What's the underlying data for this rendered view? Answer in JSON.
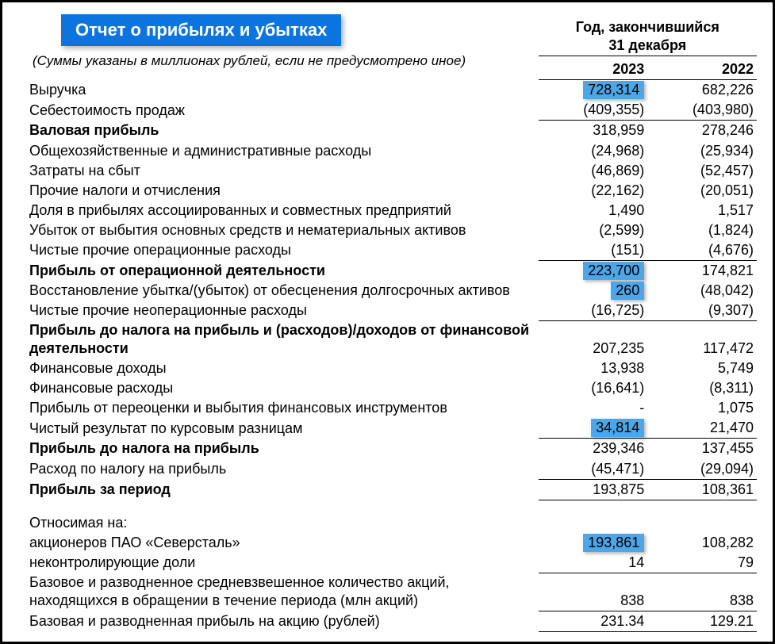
{
  "title_banner": "Отчет о прибылях и убытках",
  "subtitle": "(Суммы указаны в миллионах рублей, если не предусмотрено иное)",
  "header": {
    "group_line1": "Год, закончившийся",
    "group_line2": "31 декабря",
    "year1": "2023",
    "year2": "2022"
  },
  "colors": {
    "banner_bg": "#0b74de",
    "highlight_bg": "#4ca6e8",
    "text": "#000000",
    "bg": "#ffffff"
  },
  "rows": [
    {
      "label": "Выручка",
      "v1": "728,314",
      "v2": "682,226",
      "hl1": true
    },
    {
      "label": "Себестоимость продаж",
      "v1": "(409,355)",
      "v2": "(403,980)",
      "bb": true
    },
    {
      "label": "Валовая прибыль",
      "v1": "318,959",
      "v2": "278,246",
      "bold": true
    },
    {
      "label": "Общехозяйственные и административные расходы",
      "v1": "(24,968)",
      "v2": "(25,934)"
    },
    {
      "label": "Затраты на сбыт",
      "v1": "(46,869)",
      "v2": "(52,457)"
    },
    {
      "label": "Прочие налоги и отчисления",
      "v1": "(22,162)",
      "v2": "(20,051)"
    },
    {
      "label": "Доля в прибылях ассоциированных и совместных предприятий",
      "v1": "1,490",
      "v2": "1,517"
    },
    {
      "label": "Убыток от выбытия основных средств и нематериальных активов",
      "v1": "(2,599)",
      "v2": "(1,824)"
    },
    {
      "label": "Чистые прочие операционные расходы",
      "v1": "(151)",
      "v2": "(4,676)",
      "bb": true
    },
    {
      "label": "Прибыль от операционной деятельности",
      "v1": "223,700",
      "v2": "174,821",
      "bold": true,
      "hl1": true
    },
    {
      "label": "Восстановление убытка/(убыток) от обесценения долгосрочных активов",
      "v1": "260",
      "v2": "(48,042)",
      "hl1": true
    },
    {
      "label": "Чистые прочие неоперационные расходы",
      "v1": "(16,725)",
      "v2": "(9,307)",
      "bb": true
    },
    {
      "label": "Прибыль до налога на прибыль и (расходов)/доходов от финансовой деятельности",
      "v1": "207,235",
      "v2": "117,472",
      "bold": true,
      "two_line": true
    },
    {
      "label": "Финансовые доходы",
      "v1": "13,938",
      "v2": "5,749"
    },
    {
      "label": "Финансовые расходы",
      "v1": "(16,641)",
      "v2": "(8,311)"
    },
    {
      "label": "Прибыль от переоценки и выбытия финансовых инструментов",
      "v1": "-",
      "v2": "1,075"
    },
    {
      "label": "Чистый результат по курсовым разницам",
      "v1": "34,814",
      "v2": "21,470",
      "bb": true,
      "hl1": true
    },
    {
      "label": "Прибыль до налога на прибыль",
      "v1": "239,346",
      "v2": "137,455",
      "bold": true
    },
    {
      "label": "Расход по налогу на прибыль",
      "v1": "(45,471)",
      "v2": "(29,094)",
      "bb": true
    },
    {
      "label": "Прибыль за период",
      "v1": "193,875",
      "v2": "108,361",
      "bold": true,
      "bb": true
    }
  ],
  "rows2": [
    {
      "label": "Относимая на:"
    },
    {
      "label": "акционеров ПАО «Северсталь»",
      "v1": "193,861",
      "v2": "108,282",
      "hl1": true
    },
    {
      "label": "неконтролирующие доли",
      "v1": "14",
      "v2": "79",
      "bb": true
    },
    {
      "label": "Базовое и разводненное средневзвешенное количество акций, находящихся в обращении в течение периода (млн акций)",
      "v1": "838",
      "v2": "838",
      "two_line": true,
      "bb": true
    },
    {
      "label": "Базовая и разводненная прибыль на акцию (рублей)",
      "v1": "231.34",
      "v2": "129.21",
      "bb": true
    }
  ]
}
